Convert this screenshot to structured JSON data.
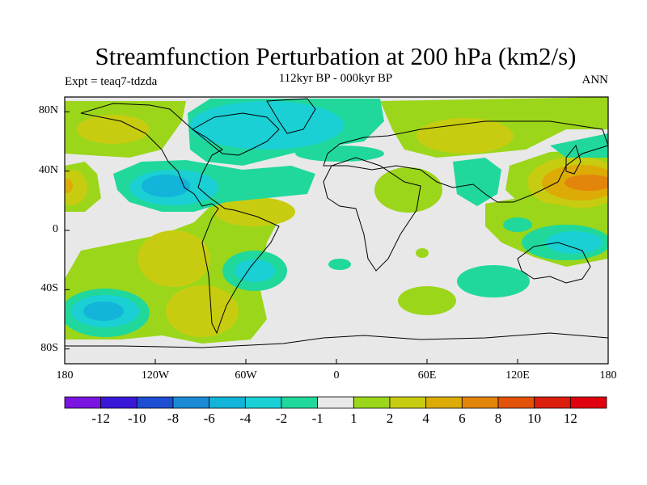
{
  "title": "Streamfunction Perturbation at 200 hPa (km2/s)",
  "subtitle": "112kyr BP - 000kyr BP",
  "left_label": "Expt = teaq7-tdzda",
  "right_label": "ANN",
  "map": {
    "projection": "cylindrical equidistant",
    "lon_range": [
      -180,
      180
    ],
    "lat_range": [
      -90,
      90
    ],
    "lat_ticks": [
      "80N",
      "40N",
      "0",
      "40S",
      "80S"
    ],
    "lon_ticks": [
      "180",
      "120W",
      "60W",
      "0",
      "60E",
      "120E",
      "180"
    ]
  },
  "colorbar": {
    "labels": [
      "-12",
      "-10",
      "-8",
      "-6",
      "-4",
      "-2",
      "-1",
      "1",
      "2",
      "4",
      "6",
      "8",
      "10",
      "12"
    ],
    "colors": [
      "#7a14e0",
      "#3a18d8",
      "#1e4ed2",
      "#1b8bd6",
      "#12b4d9",
      "#1ad0d4",
      "#20d89c",
      "#e8e8e8",
      "#9bd61a",
      "#c8cc10",
      "#dcab06",
      "#e2850a",
      "#e25208",
      "#dc1e0c",
      "#e0000e"
    ]
  }
}
